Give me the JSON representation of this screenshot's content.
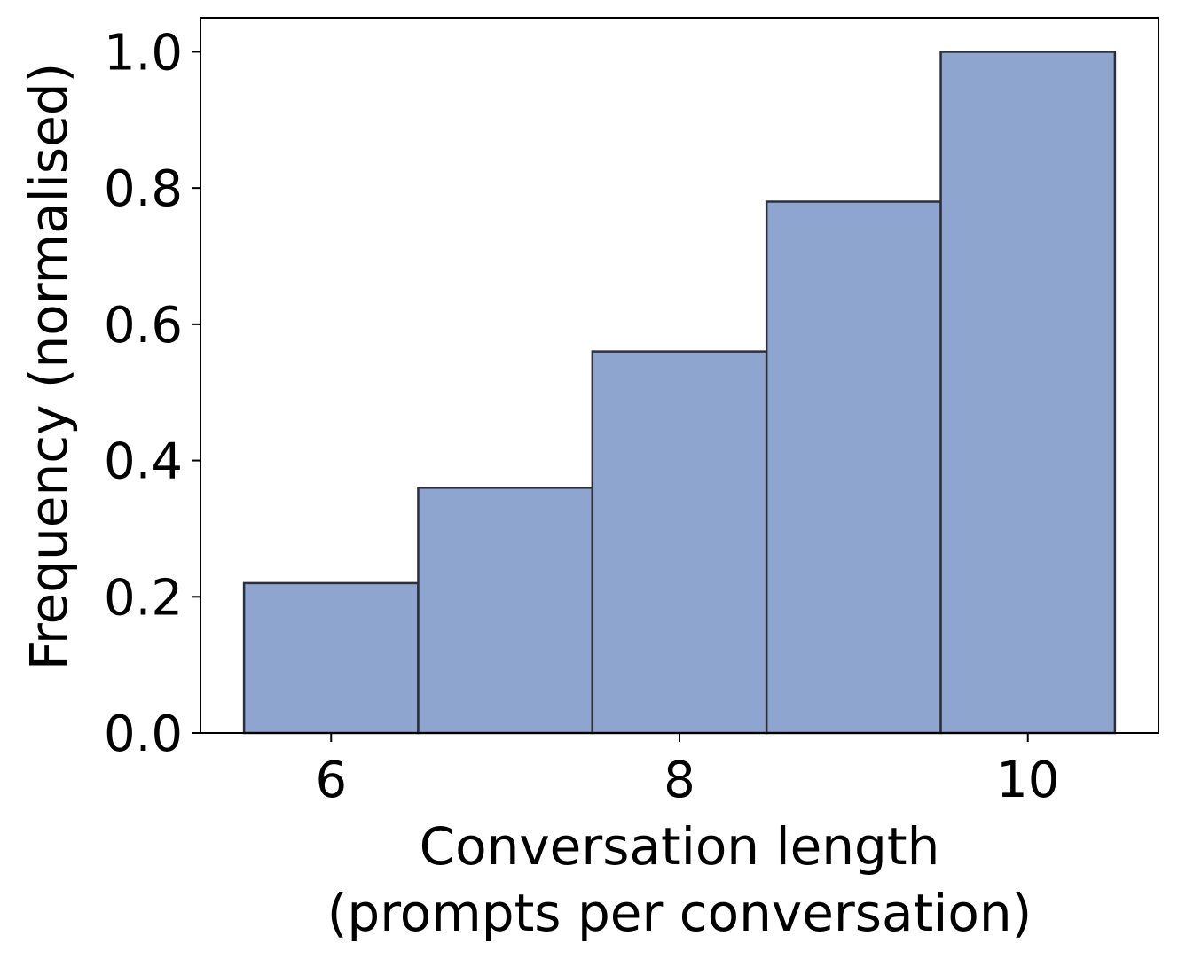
{
  "chart_data": {
    "type": "bar",
    "title": "",
    "xlabel": [
      "Conversation length",
      "(prompts per conversation)"
    ],
    "ylabel": "Frequency (normalised)",
    "categories": [
      "6",
      "7",
      "8",
      "9",
      "10"
    ],
    "bins": [
      {
        "left": 5.5,
        "right": 6.5,
        "value": 0.22
      },
      {
        "left": 6.5,
        "right": 7.5,
        "value": 0.36
      },
      {
        "left": 7.5,
        "right": 8.5,
        "value": 0.56
      },
      {
        "left": 8.5,
        "right": 9.5,
        "value": 0.78
      },
      {
        "left": 9.5,
        "right": 10.5,
        "value": 1.0
      }
    ],
    "xlim": [
      5.25,
      10.75
    ],
    "ylim": [
      0,
      1.05
    ],
    "xticks": [
      {
        "value": 6,
        "label": "6"
      },
      {
        "value": 8,
        "label": "8"
      },
      {
        "value": 10,
        "label": "10"
      }
    ],
    "yticks": [
      {
        "value": 0.0,
        "label": "0.0"
      },
      {
        "value": 0.2,
        "label": "0.2"
      },
      {
        "value": 0.4,
        "label": "0.4"
      },
      {
        "value": 0.6,
        "label": "0.6"
      },
      {
        "value": 0.8,
        "label": "0.8"
      },
      {
        "value": 1.0,
        "label": "1.0"
      }
    ],
    "grid": false,
    "bar_color": "#8EA5CF",
    "edge_color": "#2B2F3A"
  }
}
